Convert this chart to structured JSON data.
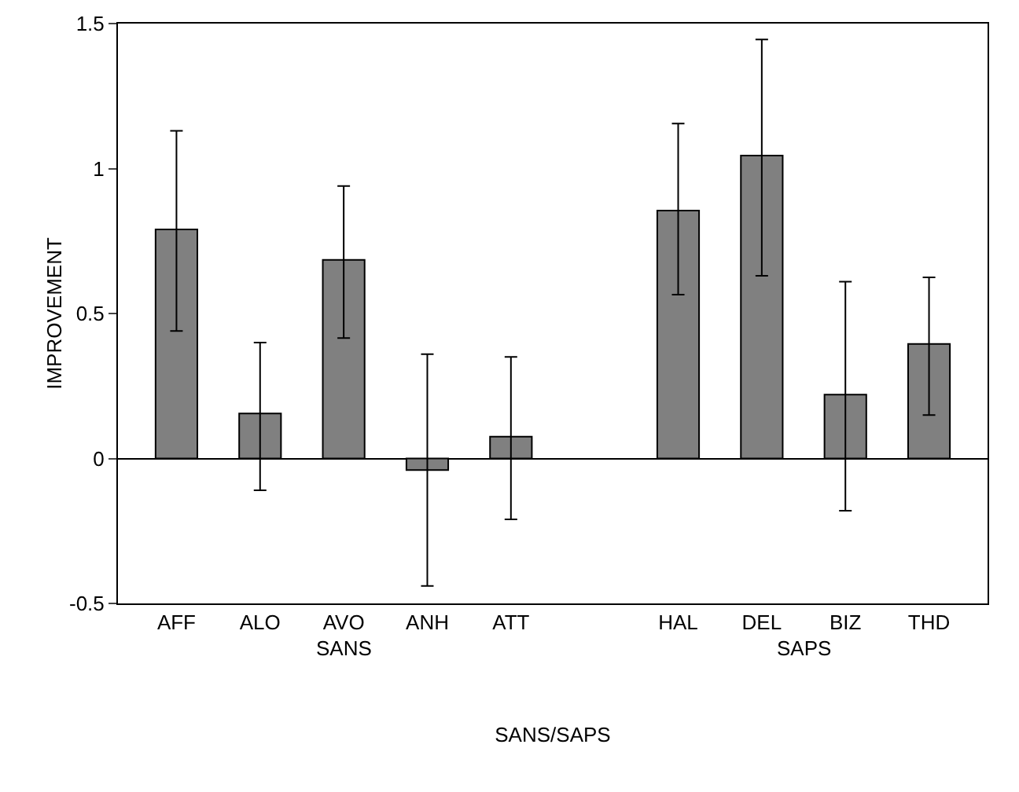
{
  "chart_data": {
    "type": "bar",
    "xlabel": "SANS/SAPS",
    "ylabel": "IMPROVEMENT",
    "categories": [
      "AFF",
      "ALO",
      "AVO",
      "ANH",
      "ATT",
      null,
      "HAL",
      "DEL",
      "BIZ",
      "THD"
    ],
    "values": [
      0.79,
      0.155,
      0.685,
      -0.04,
      0.075,
      null,
      0.855,
      1.045,
      0.22,
      0.395
    ],
    "errors": [
      [
        0.44,
        1.13
      ],
      [
        -0.11,
        0.4
      ],
      [
        0.415,
        0.94
      ],
      [
        -0.44,
        0.36
      ],
      [
        -0.21,
        0.35
      ],
      null,
      [
        0.565,
        1.155
      ],
      [
        0.63,
        1.445
      ],
      [
        -0.18,
        0.61
      ],
      [
        0.15,
        0.625
      ]
    ],
    "color": "#808080",
    "ylim": [
      -0.5,
      1.5
    ],
    "yticks": [
      -0.5,
      0,
      0.5,
      1,
      1.5
    ],
    "annotations": [
      "SANS",
      "SAPS"
    ]
  }
}
